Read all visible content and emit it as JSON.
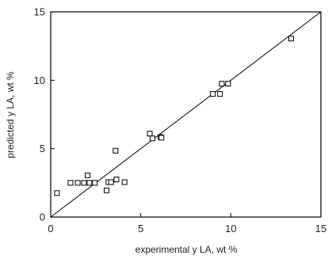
{
  "chart_data": {
    "type": "scatter",
    "xlabel": "experimental y LA, wt %",
    "ylabel": "predicted y LA, wt %",
    "xlim": [
      0,
      15
    ],
    "ylim": [
      0,
      15
    ],
    "xticks": [
      "0",
      "5",
      "10",
      "15"
    ],
    "yticks": [
      "0",
      "5",
      "10",
      "15"
    ],
    "grid": false,
    "reference_line": {
      "type": "y=x",
      "from": [
        0,
        0
      ],
      "to": [
        15,
        15
      ]
    },
    "series": [
      {
        "marker": "open-square",
        "color": "#000000",
        "points": [
          {
            "x": 0.35,
            "y": 1.75
          },
          {
            "x": 1.1,
            "y": 2.5
          },
          {
            "x": 1.5,
            "y": 2.5
          },
          {
            "x": 1.85,
            "y": 2.5
          },
          {
            "x": 2.05,
            "y": 3.05
          },
          {
            "x": 2.15,
            "y": 2.5
          },
          {
            "x": 2.45,
            "y": 2.5
          },
          {
            "x": 3.1,
            "y": 1.95
          },
          {
            "x": 3.2,
            "y": 2.55
          },
          {
            "x": 3.35,
            "y": 2.55
          },
          {
            "x": 3.6,
            "y": 4.85
          },
          {
            "x": 3.65,
            "y": 2.75
          },
          {
            "x": 4.1,
            "y": 2.55
          },
          {
            "x": 5.5,
            "y": 6.1
          },
          {
            "x": 5.65,
            "y": 5.75
          },
          {
            "x": 6.1,
            "y": 5.85
          },
          {
            "x": 6.15,
            "y": 5.8
          },
          {
            "x": 9.0,
            "y": 9.0
          },
          {
            "x": 9.4,
            "y": 9.0
          },
          {
            "x": 9.5,
            "y": 9.75
          },
          {
            "x": 9.85,
            "y": 9.75
          },
          {
            "x": 13.35,
            "y": 13.05
          }
        ]
      }
    ]
  }
}
